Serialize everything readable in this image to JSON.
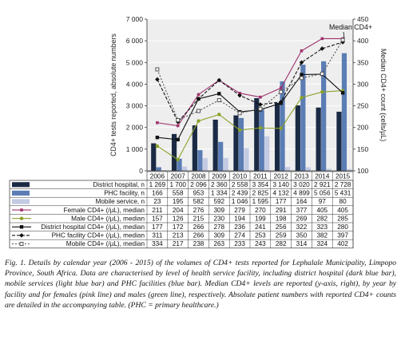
{
  "chart_data": {
    "type": "bar",
    "years": [
      "2006",
      "2007",
      "2008",
      "2009",
      "2010",
      "2011",
      "2012",
      "2013",
      "2014",
      "2015"
    ],
    "left_axis": {
      "label": "CD4+ tests reported, absolute numbers",
      "min": 0,
      "max": 7000,
      "ticks": [
        0,
        1000,
        2000,
        3000,
        4000,
        5000,
        6000,
        7000
      ],
      "tick_labels": [
        "0",
        "1 000",
        "2 000",
        "3 000",
        "4 000",
        "5 000",
        "6 000",
        "7 000"
      ]
    },
    "right_axis": {
      "label": "Median CD4+ count (cells/µL)",
      "min": 100,
      "max": 450,
      "ticks": [
        100,
        150,
        200,
        250,
        300,
        350,
        400,
        450
      ],
      "tick_labels": [
        "100",
        "150",
        "200",
        "250",
        "300",
        "350",
        "400",
        "450"
      ]
    },
    "annotation": "Median CD4+",
    "bar_series": [
      {
        "name": "District hospital, n",
        "color": "#1b2a44",
        "values": [
          1269,
          1700,
          2096,
          2360,
          2558,
          3354,
          3140,
          3020,
          2921,
          2728
        ],
        "labels": [
          "1 269",
          "1 700",
          "2 096",
          "2 360",
          "2 558",
          "3 354",
          "3 140",
          "3 020",
          "2 921",
          "2 728"
        ]
      },
      {
        "name": "PHC facility, n",
        "color": "#5b7db4",
        "values": [
          166,
          558,
          953,
          1334,
          2439,
          2825,
          4132,
          4899,
          5056,
          5431
        ],
        "labels": [
          "166",
          "558",
          "953",
          "1 334",
          "2 439",
          "2 825",
          "4 132",
          "4 899",
          "5 056",
          "5 431"
        ]
      },
      {
        "name": "Mobile service, n",
        "color": "#c3cbe3",
        "values": [
          23,
          195,
          582,
          592,
          1046,
          1595,
          177,
          164,
          97,
          80
        ],
        "labels": [
          "23",
          "195",
          "582",
          "592",
          "1 046",
          "1 595",
          "177",
          "164",
          "97",
          "80"
        ]
      }
    ],
    "line_series": [
      {
        "name": "Female CD4+ (/µL), median",
        "color": "#a0326e",
        "dash": "",
        "marker": "square-small",
        "values": [
          211,
          204,
          276,
          309,
          279,
          270,
          291,
          377,
          405,
          405
        ]
      },
      {
        "name": "Male CD4+ (/µL), median",
        "color": "#8aa12a",
        "dash": "",
        "marker": "circle",
        "values": [
          157,
          126,
          215,
          230,
          194,
          199,
          198,
          269,
          282,
          285
        ]
      },
      {
        "name": "District hospital CD4+ (/µL), median",
        "color": "#111111",
        "dash": "",
        "marker": "square",
        "values": [
          177,
          172,
          266,
          278,
          236,
          241,
          256,
          322,
          323,
          280
        ]
      },
      {
        "name": "PHC facility CD4+ (/µL), median",
        "color": "#111111",
        "dash": "4,2",
        "marker": "diamond",
        "values": [
          311,
          213,
          266,
          309,
          274,
          253,
          259,
          350,
          382,
          397
        ]
      },
      {
        "name": "Mobile CD4+ (/µL), median",
        "color": "#555555",
        "dash": "2,2",
        "marker": "square-open",
        "values": [
          334,
          217,
          238,
          263,
          233,
          243,
          282,
          314,
          324,
          402
        ]
      }
    ]
  },
  "caption": "Fig. 1. Details by calendar year (2006 - 2015) of the volumes of CD4+ tests reported for Lephalale Municipality, Limpopo Province, South Africa. Data are characterised by level of health service facility, including district hospital (dark blue bar), mobile services (light blue bar) and PHC facilities (blue bar). Median CD4+ levels are reported (y-axis, right), by year by facility and for females (pink line) and males (green line), respectively. Absolute patient numbers with reported CD4+ counts are detailed in the accompanying table. (PHC = primary healthcare.)"
}
